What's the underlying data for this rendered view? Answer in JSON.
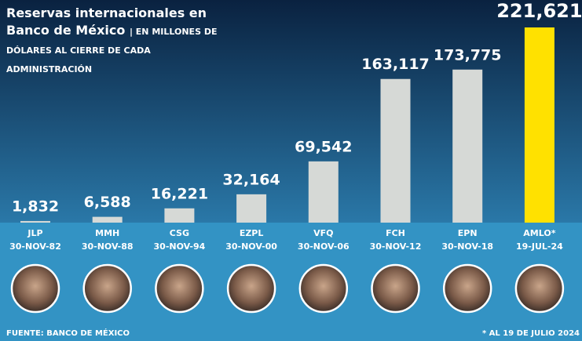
{
  "chart_data": {
    "type": "bar",
    "title": "Reservas internacionales en Banco de México",
    "subtitle": "| EN MILLONES DE DÓLARES AL CIERRE DE CADA ADMINISTRACIÓN",
    "categories": [
      "JLP",
      "MMH",
      "CSG",
      "EZPL",
      "VFQ",
      "FCH",
      "EPN",
      "AMLO*"
    ],
    "dates": [
      "30-NOV-82",
      "30-NOV-88",
      "30-NOV-94",
      "30-NOV-00",
      "30-NOV-06",
      "30-NOV-12",
      "30-NOV-18",
      "19-JUL-24"
    ],
    "values": [
      1832,
      6588,
      16221,
      32164,
      69542,
      163117,
      173775,
      221621
    ],
    "value_labels": [
      "1,832",
      "6,588",
      "16,221",
      "32,164",
      "69,542",
      "163,117",
      "173,775",
      "221,621"
    ],
    "colors": [
      "#d6d9d6",
      "#d6d9d6",
      "#d6d9d6",
      "#d6d9d6",
      "#d6d9d6",
      "#d6d9d6",
      "#d6d9d6",
      "#ffe100"
    ],
    "source": "FUENTE: BANCO DE MÉXICO",
    "note": "* AL 19 DE JULIO 2024"
  }
}
